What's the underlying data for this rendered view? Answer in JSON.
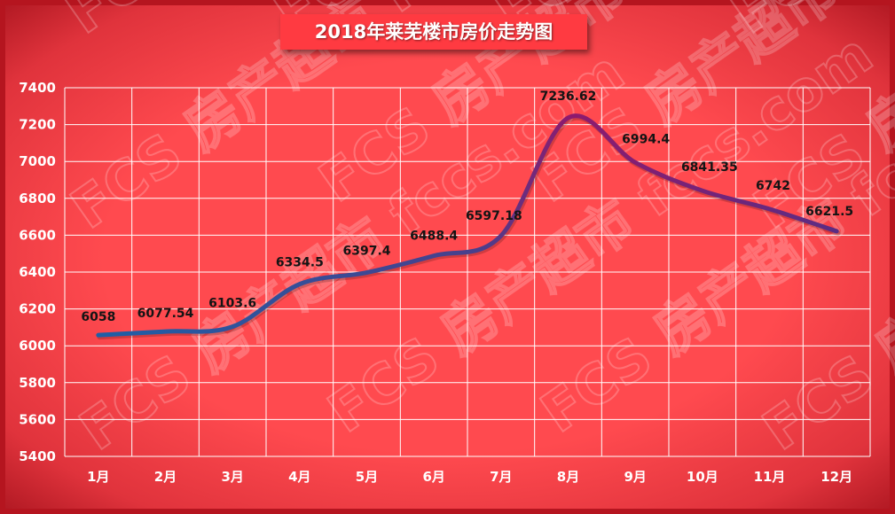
{
  "chart_data": {
    "type": "line",
    "title": "2018年莱芜楼市房价走势图",
    "categories": [
      "1月",
      "2月",
      "3月",
      "4月",
      "5月",
      "6月",
      "7月",
      "8月",
      "9月",
      "10月",
      "11月",
      "12月"
    ],
    "series": [
      {
        "values": [
          6058,
          6077.54,
          6103.6,
          6334.5,
          6397.4,
          6488.4,
          6597.18,
          7236.62,
          6994.4,
          6841.35,
          6742,
          6621.5
        ],
        "labels": [
          "6058",
          "6077.54",
          "6103.6",
          "6334.5",
          "6397.4",
          "6488.4",
          "6597.18",
          "7236.62",
          "6994.4",
          "6841.35",
          "6742",
          "6621.5"
        ]
      }
    ],
    "ylim": [
      5400,
      7400
    ],
    "yticks": [
      5400,
      5600,
      5800,
      6000,
      6200,
      6400,
      6600,
      6800,
      7000,
      7200,
      7400
    ],
    "grid": true,
    "colors": {
      "background": "#ff4a4f",
      "grid": "#ffffff",
      "line_start": "#1f5fa6",
      "line_peak": "#8e1a6e",
      "line_end": "#5b2d83"
    }
  },
  "watermark": "FCS 房产超市 fccs.com"
}
